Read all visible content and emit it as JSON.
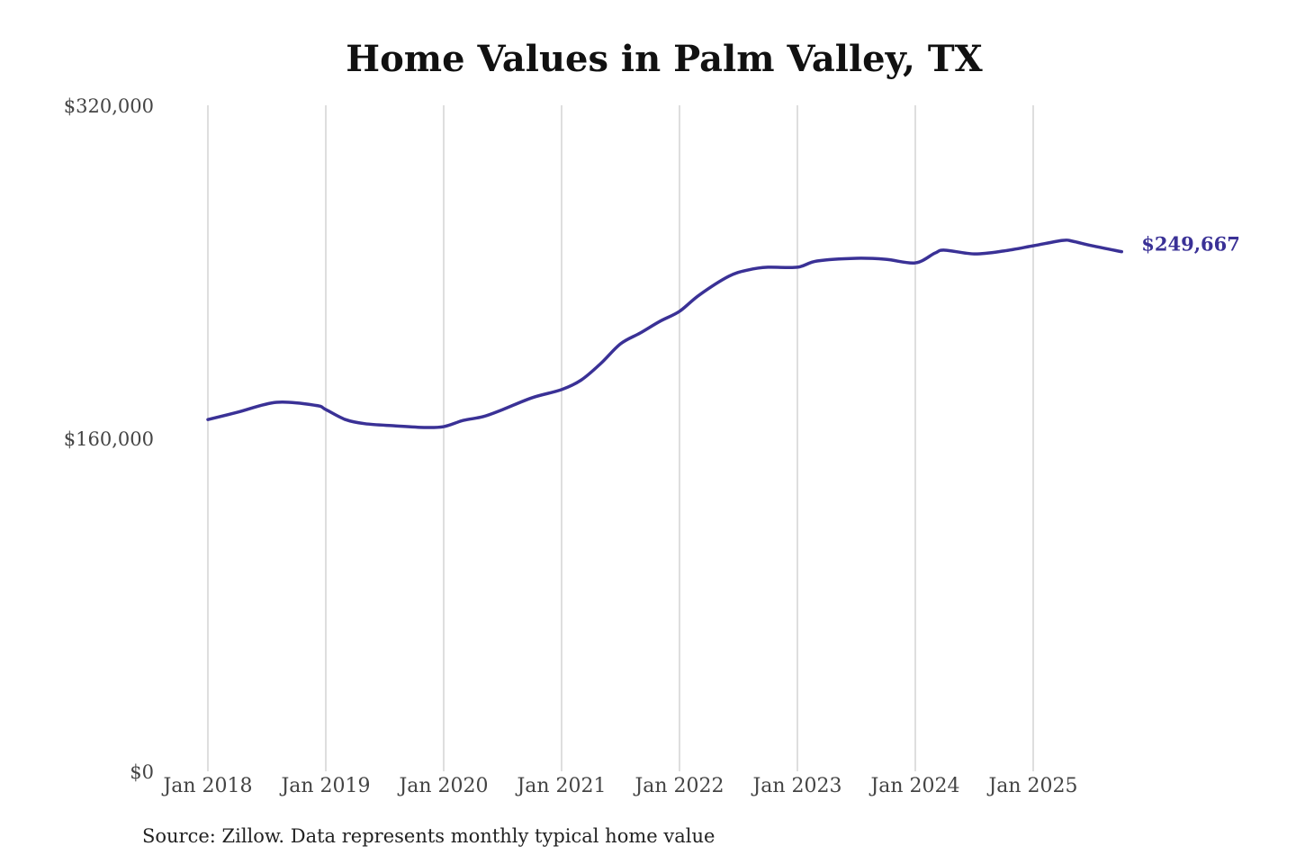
{
  "chart_data": {
    "type": "line",
    "title": "Home Values in Palm Valley, TX",
    "source": "Source: Zillow. Data represents monthly typical home value",
    "xlabel": "",
    "ylabel": "",
    "ylim": [
      0,
      320000
    ],
    "y_ticks": [
      "$0",
      "$160,000",
      "$320,000"
    ],
    "y_tick_values": [
      0,
      160000,
      320000
    ],
    "x_ticks": [
      "Jan 2018",
      "Jan 2019",
      "Jan 2020",
      "Jan 2021",
      "Jan 2022",
      "Jan 2023",
      "Jan 2024",
      "Jan 2025"
    ],
    "x_tick_dates": [
      "2018-01",
      "2019-01",
      "2020-01",
      "2021-01",
      "2022-01",
      "2023-01",
      "2024-01",
      "2025-01"
    ],
    "grid": "vertical",
    "line_color": "#3a3196",
    "end_label": "$249,667",
    "series": [
      {
        "x": [
          "2018-01",
          "2018-04",
          "2018-08",
          "2018-12",
          "2019-01",
          "2019-03",
          "2019-05",
          "2019-08",
          "2019-11",
          "2020-01",
          "2020-03",
          "2020-05",
          "2020-07",
          "2020-10",
          "2021-01",
          "2021-03",
          "2021-05",
          "2021-07",
          "2021-09",
          "2021-11",
          "2022-01",
          "2022-03",
          "2022-06",
          "2022-08",
          "2022-10",
          "2023-01",
          "2023-03",
          "2023-07",
          "2023-10",
          "2024-01",
          "2024-03",
          "2024-04",
          "2024-07",
          "2024-10",
          "2025-01",
          "2025-04",
          "2025-05",
          "2025-07",
          "2025-10"
        ],
        "values": [
          169000,
          172500,
          177300,
          175800,
          173800,
          169000,
          167000,
          166000,
          165200,
          165600,
          168600,
          170400,
          173800,
          179500,
          183400,
          188000,
          196000,
          205400,
          210600,
          216200,
          221000,
          228800,
          237800,
          240900,
          242200,
          242200,
          245200,
          246500,
          246000,
          244300,
          249000,
          250400,
          248600,
          250000,
          252500,
          255100,
          254700,
          252500,
          249667
        ]
      }
    ]
  }
}
